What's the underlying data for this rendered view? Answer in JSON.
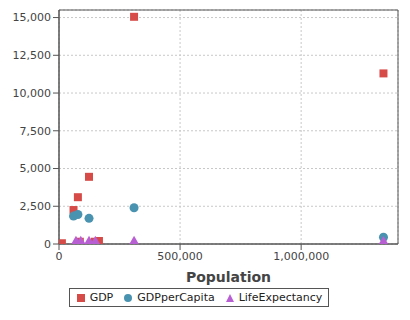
{
  "chart_data": {
    "type": "scatter",
    "x_label": "Population",
    "xlim": [
      0,
      1400000
    ],
    "xticks": [
      0,
      {
        "value": 500000,
        "label": "500,000"
      },
      {
        "value": 1000000,
        "label": "1,000,000"
      }
    ],
    "ylim": [
      0,
      15500
    ],
    "yticks": [
      0,
      {
        "value": 2500,
        "label": "2,500"
      },
      {
        "value": 5000,
        "label": "5,000"
      },
      {
        "value": 7500,
        "label": "7,500"
      },
      {
        "value": 10000,
        "label": "10,000"
      },
      {
        "value": 12500,
        "label": "12,500"
      },
      {
        "value": 15000,
        "label": "15,000"
      }
    ],
    "grid": true,
    "legend": "bottom",
    "series": [
      {
        "name": "GDP",
        "color": "#d64b48",
        "marker": "square",
        "x": [
          12000,
          60000,
          78000,
          86000,
          124000,
          148000,
          165000,
          310000,
          1340000
        ],
        "values": [
          50,
          2250,
          3100,
          150,
          4450,
          150,
          200,
          15050,
          11300
        ]
      },
      {
        "name": "GDPperCapita",
        "color": "#4a93b0",
        "marker": "circle",
        "x": [
          60000,
          78000,
          124000,
          310000,
          1340000
        ],
        "values": [
          1850,
          1950,
          1700,
          2400,
          450
        ]
      },
      {
        "name": "LifeExpectancy",
        "color": "#b95fd4",
        "marker": "triangle",
        "x": [
          70000,
          90000,
          124000,
          150000,
          310000,
          1340000
        ],
        "values": [
          75,
          75,
          75,
          75,
          78,
          73
        ]
      }
    ]
  }
}
